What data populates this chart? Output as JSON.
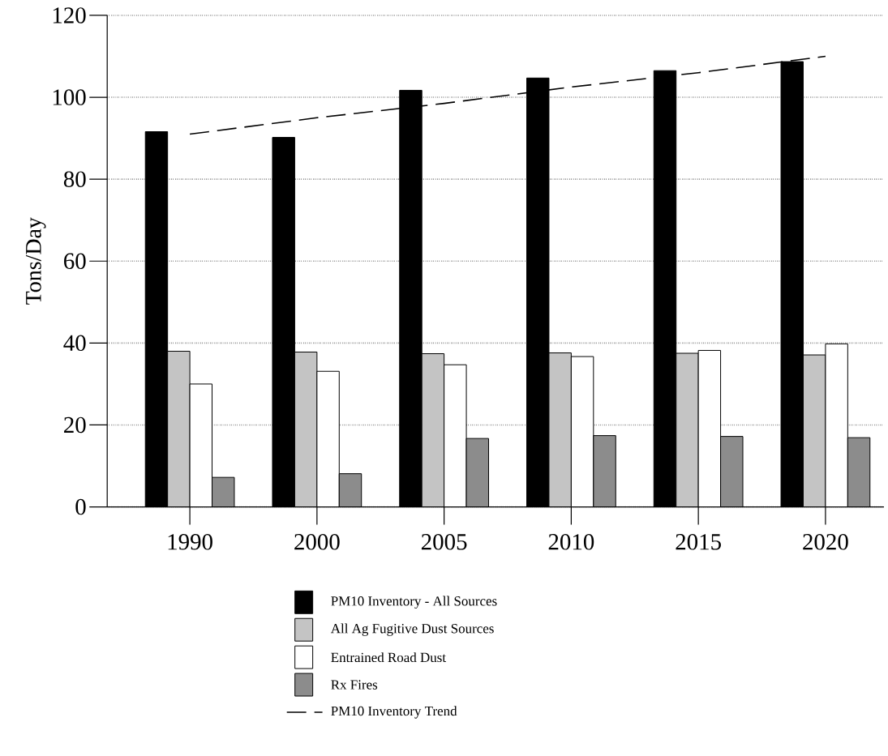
{
  "chart_data": {
    "type": "bar",
    "ylabel": "Tons/Day",
    "categories": [
      "1990",
      "2000",
      "2005",
      "2010",
      "2015",
      "2020"
    ],
    "series": [
      {
        "name": "PM10 Inventory - All Sources",
        "color": "#000000",
        "values": [
          91.6,
          90.2,
          101.7,
          104.7,
          106.5,
          108.7
        ]
      },
      {
        "name": "All Ag Fugitive Dust Sources",
        "color": "#c4c4c4",
        "values": [
          38,
          37.8,
          37.4,
          37.6,
          37.5,
          37.1
        ]
      },
      {
        "name": "Entrained Road Dust",
        "color": "#ffffff",
        "values": [
          30,
          33.1,
          34.7,
          36.7,
          38.2,
          39.8
        ]
      },
      {
        "name": "Rx Fires",
        "color": "#8c8c8c",
        "values": [
          7.2,
          8.1,
          16.7,
          17.4,
          17.2,
          16.9
        ]
      },
      {
        "name": "PM10 Inventory Trend",
        "type": "line",
        "color": "#000000",
        "values": [
          91,
          95,
          98.5,
          102.5,
          106,
          110
        ]
      }
    ],
    "line_style": "dashed",
    "ylim": [
      0,
      120
    ],
    "yticks": [
      0,
      20,
      40,
      60,
      80,
      100,
      120
    ],
    "grid": "y",
    "legend": "bottom"
  }
}
